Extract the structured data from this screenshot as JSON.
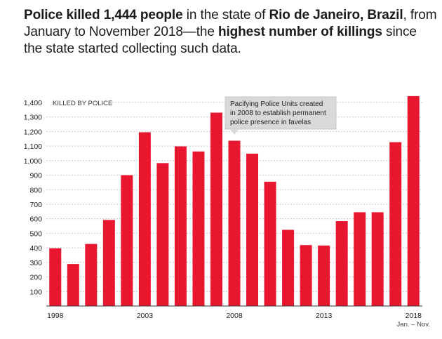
{
  "headline": {
    "parts": [
      {
        "text": "Police killed 1,444 people",
        "bold": true
      },
      {
        "text": " in the state of ",
        "bold": false
      },
      {
        "text": "Rio de Janeiro, Brazil",
        "bold": true
      },
      {
        "text": ", from January to November 2018—the ",
        "bold": false
      },
      {
        "text": "highest number of killings",
        "bold": true
      },
      {
        "text": " since the state started collecting such data.",
        "bold": false
      }
    ]
  },
  "chart_data": {
    "type": "bar",
    "ylabel": "KILLED BY POLICE",
    "ylim": [
      0,
      1400
    ],
    "yticks": [
      100,
      200,
      300,
      400,
      500,
      600,
      700,
      800,
      900,
      1000,
      1100,
      1200,
      1300,
      1400
    ],
    "ytick_labels": [
      "100",
      "200",
      "300",
      "400",
      "500",
      "600",
      "700",
      "800",
      "900",
      "1,000",
      "1,100",
      "1,200",
      "1,300",
      "1,400"
    ],
    "categories": [
      1998,
      1999,
      2000,
      2001,
      2002,
      2003,
      2004,
      2005,
      2006,
      2007,
      2008,
      2009,
      2010,
      2011,
      2012,
      2013,
      2014,
      2015,
      2016,
      2017,
      2018
    ],
    "values": [
      397,
      289,
      427,
      592,
      900,
      1195,
      983,
      1098,
      1063,
      1330,
      1137,
      1048,
      855,
      524,
      419,
      416,
      584,
      645,
      645,
      1127,
      1444
    ],
    "xtick_labels": {
      "1998": "1998",
      "2003": "2003",
      "2008": "2008",
      "2013": "2013",
      "2018": "2018"
    },
    "last_bar_note": "Jan. – Nov.",
    "annotation": {
      "text": [
        "Pacifying Police Units created",
        "in 2008 to establish permanent",
        "police presence in favelas"
      ],
      "year": 2008
    },
    "colors": {
      "bar": "#e8162f",
      "grid": "#c8c8c8",
      "axis": "#333333",
      "annotation_bg": "#d9d9d9"
    },
    "grid": true
  }
}
